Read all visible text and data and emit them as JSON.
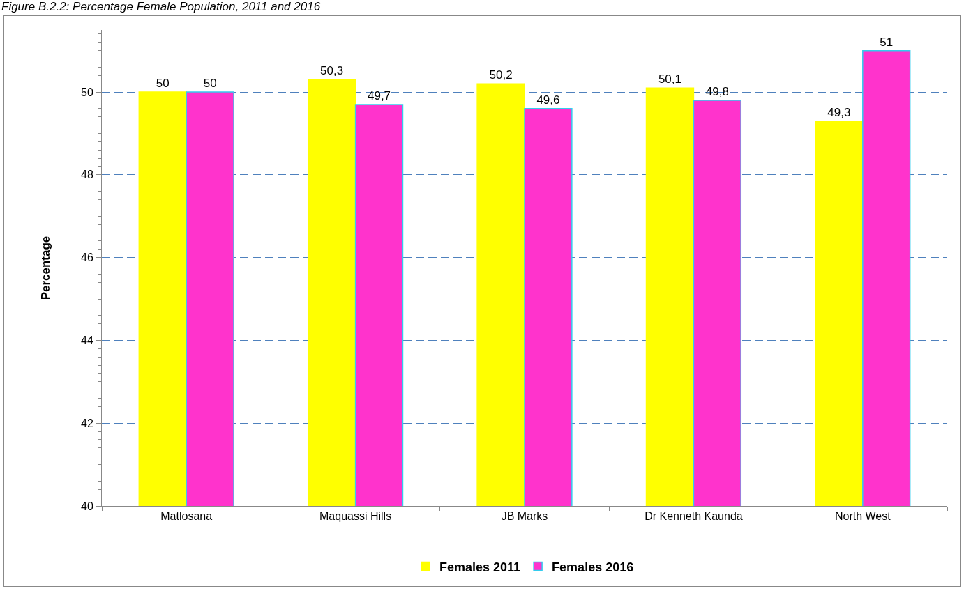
{
  "chart_data": {
    "type": "bar",
    "title": "Figure B.2.2: Percentage Female Population, 2011 and 2016",
    "ylabel": "Percentage",
    "categories": [
      "Matlosana",
      "Maquassi Hills",
      "JB Marks",
      "Dr Kenneth Kaunda",
      "North West"
    ],
    "series": [
      {
        "name": "Females 2011",
        "color": "#ffff00",
        "values": [
          50,
          50.3,
          50.2,
          50.1,
          49.3
        ],
        "value_labels": [
          "50",
          "50,3",
          "50,2",
          "50,1",
          "49,3"
        ]
      },
      {
        "name": "Females 2016",
        "color": "#ff33cc",
        "values": [
          50,
          49.7,
          49.6,
          49.8,
          51
        ],
        "value_labels": [
          "50",
          "49,7",
          "49,6",
          "49,8",
          "51"
        ]
      }
    ],
    "ylim": [
      40,
      51.5
    ],
    "yticks": [
      40,
      42,
      44,
      46,
      48,
      50
    ],
    "grid": "y",
    "legend": "bottom"
  }
}
